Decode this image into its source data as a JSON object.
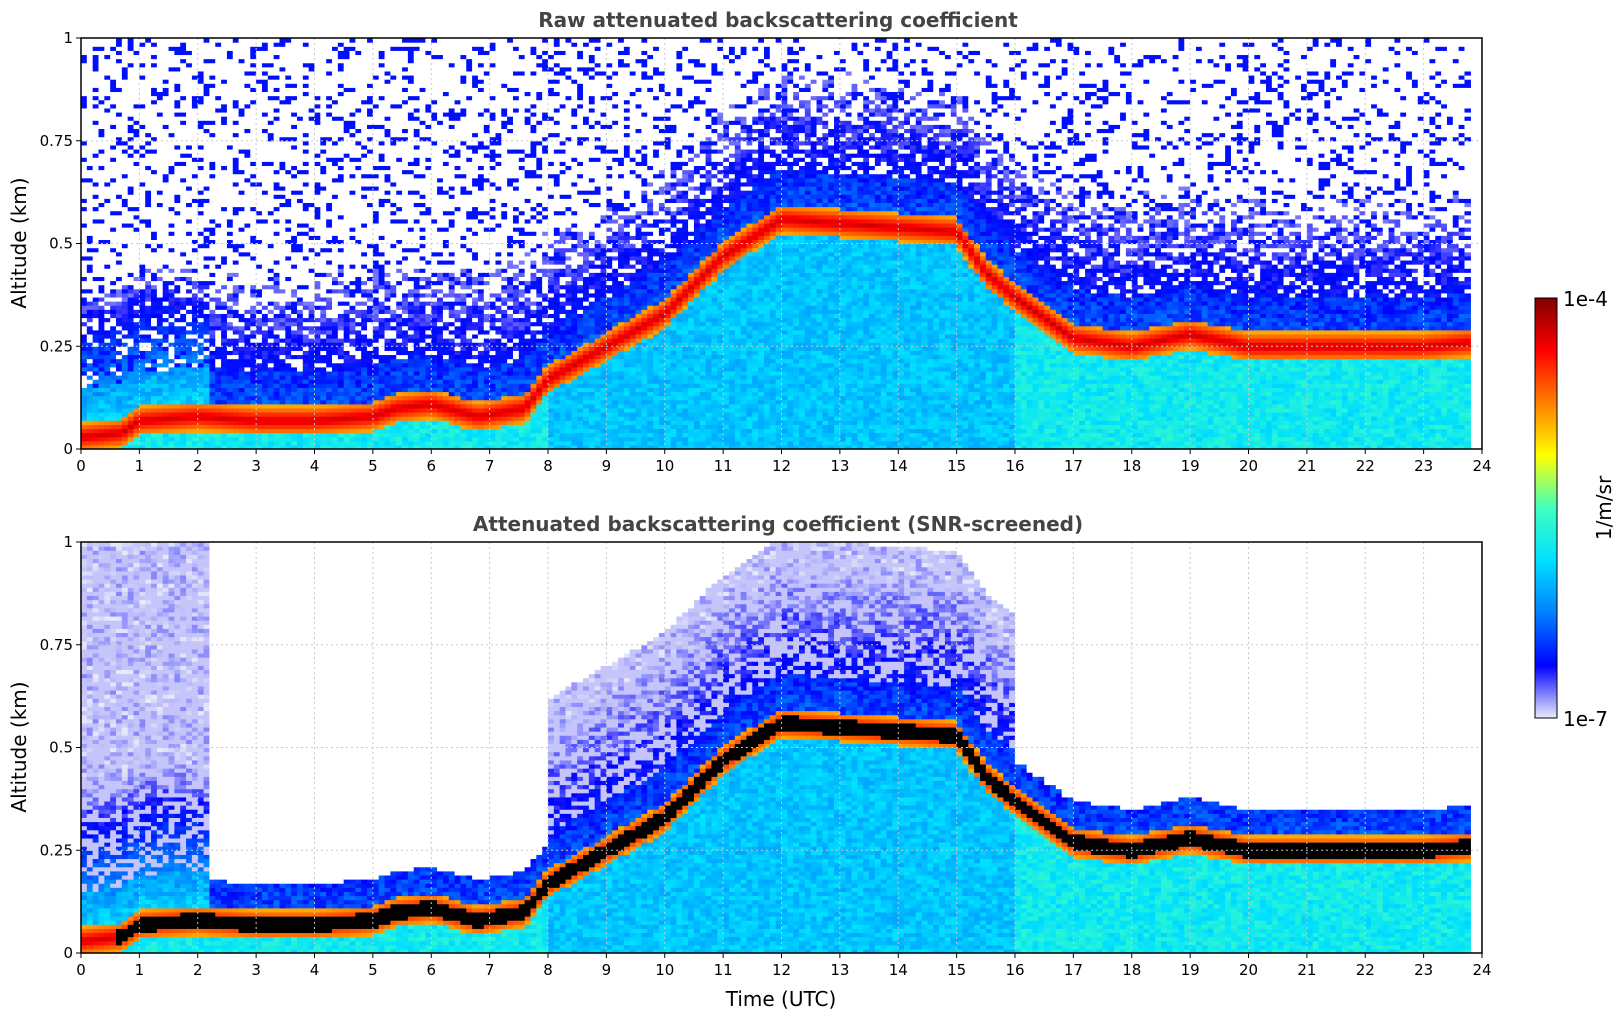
{
  "colors": {
    "colormap": [
      "#ebebfa",
      "#0000ff",
      "#0080ff",
      "#00e0ff",
      "#40ffc0",
      "#ffff00",
      "#ff8000",
      "#ff0000",
      "#800000"
    ],
    "screened_core": "#000000",
    "grid": "#c8c8c8"
  },
  "colorbar": {
    "label": "1/m/sr",
    "max_label": "1e-4",
    "min_label": "1e-7",
    "scale": "log",
    "range": [
      1e-07,
      0.0001
    ]
  },
  "chart_data": [
    {
      "type": "heatmap",
      "title": "Raw attenuated backscattering coefficient",
      "xlabel": "",
      "ylabel": "Altitude (km)",
      "xlim": [
        0,
        24
      ],
      "ylim": [
        0,
        1
      ],
      "x_ticks": [
        "0",
        "1",
        "2",
        "3",
        "4",
        "5",
        "6",
        "7",
        "8",
        "9",
        "10",
        "11",
        "12",
        "13",
        "14",
        "15",
        "16",
        "17",
        "18",
        "19",
        "20",
        "21",
        "22",
        "23",
        "24"
      ],
      "y_ticks": [
        "0",
        "0.25",
        "0.5",
        "0.75",
        "1"
      ],
      "grid": true,
      "screened": false,
      "data_end_time": 23.8,
      "layer_height_km": {
        "time": [
          0,
          0.7,
          1,
          2,
          3,
          4,
          5,
          5.4,
          6,
          6.8,
          7.6,
          8,
          9,
          10,
          11,
          12,
          13,
          14,
          15,
          15.5,
          16,
          17,
          18,
          19,
          20,
          21,
          22,
          23,
          23.8
        ],
        "height": [
          0.03,
          0.04,
          0.07,
          0.08,
          0.07,
          0.07,
          0.08,
          0.1,
          0.11,
          0.08,
          0.1,
          0.17,
          0.25,
          0.33,
          0.47,
          0.56,
          0.55,
          0.54,
          0.53,
          0.43,
          0.37,
          0.27,
          0.25,
          0.28,
          0.25,
          0.25,
          0.25,
          0.25,
          0.26
        ]
      }
    },
    {
      "type": "heatmap",
      "title": "Attenuated backscattering coefficient (SNR-screened)",
      "xlabel": "Time (UTC)",
      "ylabel": "Altitude (km)",
      "xlim": [
        0,
        24
      ],
      "ylim": [
        0,
        1
      ],
      "x_ticks": [
        "0",
        "1",
        "2",
        "3",
        "4",
        "5",
        "6",
        "7",
        "8",
        "9",
        "10",
        "11",
        "12",
        "13",
        "14",
        "15",
        "16",
        "17",
        "18",
        "19",
        "20",
        "21",
        "22",
        "23",
        "24"
      ],
      "y_ticks": [
        "0",
        "0.25",
        "0.5",
        "0.75",
        "1"
      ],
      "grid": true,
      "screened": true,
      "data_end_time": 23.8,
      "layer_height_km": {
        "time": [
          0,
          0.7,
          1,
          2,
          3,
          4,
          5,
          5.4,
          6,
          6.8,
          7.6,
          8,
          9,
          10,
          11,
          12,
          13,
          14,
          15,
          15.5,
          16,
          17,
          18,
          19,
          20,
          21,
          22,
          23,
          23.8
        ],
        "height": [
          0.03,
          0.04,
          0.07,
          0.08,
          0.07,
          0.07,
          0.08,
          0.1,
          0.11,
          0.08,
          0.1,
          0.17,
          0.25,
          0.33,
          0.47,
          0.56,
          0.55,
          0.54,
          0.53,
          0.43,
          0.37,
          0.27,
          0.25,
          0.28,
          0.25,
          0.25,
          0.25,
          0.25,
          0.26
        ]
      }
    }
  ]
}
